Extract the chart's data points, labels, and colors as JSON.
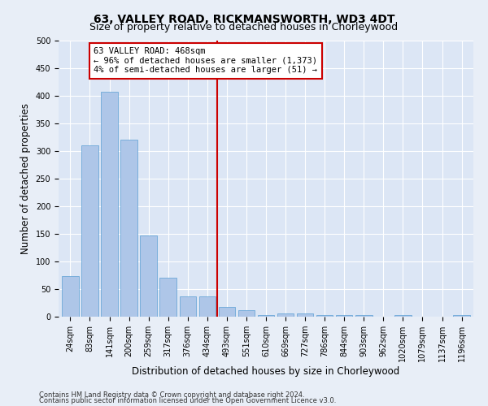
{
  "title": "63, VALLEY ROAD, RICKMANSWORTH, WD3 4DT",
  "subtitle": "Size of property relative to detached houses in Chorleywood",
  "xlabel": "Distribution of detached houses by size in Chorleywood",
  "ylabel": "Number of detached properties",
  "footnote1": "Contains HM Land Registry data © Crown copyright and database right 2024.",
  "footnote2": "Contains public sector information licensed under the Open Government Licence v3.0.",
  "bar_labels": [
    "24sqm",
    "83sqm",
    "141sqm",
    "200sqm",
    "259sqm",
    "317sqm",
    "376sqm",
    "434sqm",
    "493sqm",
    "551sqm",
    "610sqm",
    "669sqm",
    "727sqm",
    "786sqm",
    "844sqm",
    "903sqm",
    "962sqm",
    "1020sqm",
    "1079sqm",
    "1137sqm",
    "1196sqm"
  ],
  "bar_values": [
    73,
    310,
    407,
    320,
    147,
    70,
    37,
    37,
    17,
    12,
    3,
    6,
    6,
    3,
    3,
    3,
    0,
    3,
    0,
    0,
    3
  ],
  "bar_color": "#aec6e8",
  "bar_edge_color": "#5a9fd4",
  "vline_x": 7.5,
  "vline_color": "#cc0000",
  "annotation_line1": "63 VALLEY ROAD: 468sqm",
  "annotation_line2": "← 96% of detached houses are smaller (1,373)",
  "annotation_line3": "4% of semi-detached houses are larger (51) →",
  "annotation_box_color": "#cc0000",
  "annotation_fill": "#ffffff",
  "ylim": [
    0,
    500
  ],
  "yticks": [
    0,
    50,
    100,
    150,
    200,
    250,
    300,
    350,
    400,
    450,
    500
  ],
  "bg_color": "#e8eef7",
  "plot_bg_color": "#dce6f5",
  "grid_color": "#ffffff",
  "title_fontsize": 10,
  "subtitle_fontsize": 9,
  "xlabel_fontsize": 8.5,
  "ylabel_fontsize": 8.5,
  "tick_fontsize": 7,
  "annotation_fontsize": 7.5,
  "footnote_fontsize": 6
}
